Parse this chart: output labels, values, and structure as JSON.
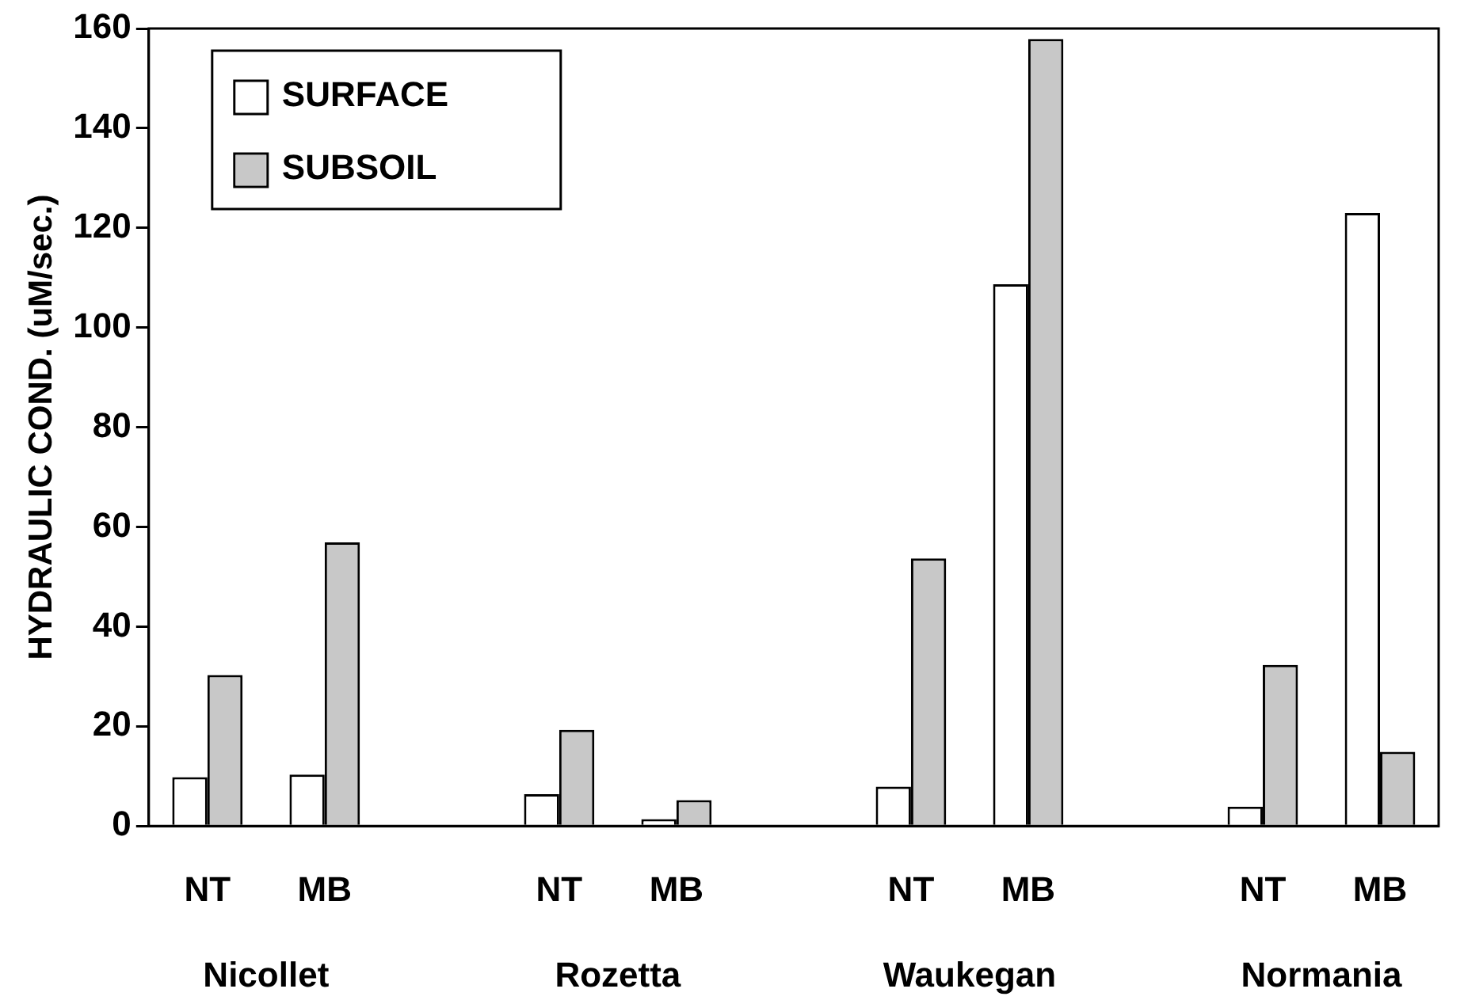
{
  "chart_data": {
    "type": "bar",
    "ylabel": "HYDRAULIC COND. (uM/sec.)",
    "categories": [
      "NT",
      "MB",
      null,
      "NT",
      "MB",
      null,
      "NT",
      "MB",
      null,
      "NT",
      "MB"
    ],
    "series": [
      {
        "name": "SURFACE",
        "color": "#ffffff",
        "values": [
          9.8,
          10.3,
          null,
          6.4,
          1.4,
          null,
          7.9,
          108.7,
          null,
          3.9,
          123
        ]
      },
      {
        "name": "SUBSOIL",
        "color": "#c8c8c8",
        "values": [
          30.3,
          56.9,
          null,
          19.3,
          5.2,
          null,
          53.7,
          157.9,
          null,
          32.3,
          14.9
        ]
      }
    ],
    "annotations": [
      "Nicollet",
      "Rozetta",
      "Waukegan",
      "Normania"
    ],
    "ylim": [
      0,
      160
    ],
    "yticks": [
      0,
      20,
      40,
      60,
      80,
      100,
      120,
      140,
      160
    ],
    "grid": false,
    "legend": "top left"
  }
}
